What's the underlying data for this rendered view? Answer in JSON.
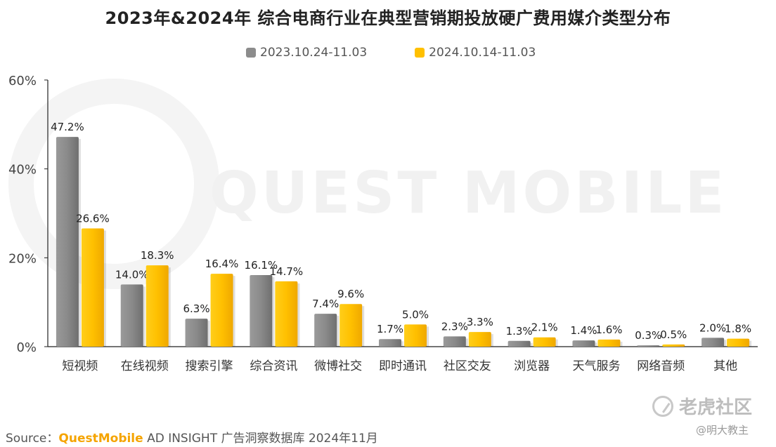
{
  "title": "2023年&2024年 综合电商行业在典型营销期投放硬广费用媒介类型分布",
  "legend": [
    {
      "name": "2023.10.24-11.03",
      "color": "#8c8c8c"
    },
    {
      "name": "2024.10.14-11.03",
      "color": "#ffc000"
    }
  ],
  "watermark": "QUEST MOBILE",
  "source": {
    "prefix": "Source：",
    "brand": "QuestMobile",
    "rest": " AD INSIGHT 广告洞察数据库 2024年11月"
  },
  "badge_text": "老虎社区",
  "author_text": "@明大教主",
  "chart_data": {
    "type": "bar",
    "title": "2023年&2024年 综合电商行业在典型营销期投放硬广费用媒介类型分布",
    "categories": [
      "短视频",
      "在线视频",
      "搜索引擎",
      "综合资讯",
      "微博社交",
      "即时通讯",
      "社区交友",
      "浏览器",
      "天气服务",
      "网络音频",
      "其他"
    ],
    "series": [
      {
        "name": "2023.10.24-11.03",
        "values": [
          47.2,
          14.0,
          6.3,
          16.1,
          7.4,
          1.7,
          2.3,
          1.3,
          1.4,
          0.3,
          2.0
        ],
        "labels": [
          "47.2%",
          "14.0%",
          "6.3%",
          "16.1%",
          "7.4%",
          "1.7%",
          "2.3%",
          "1.3%",
          "1.4%",
          "0.3%",
          "2.0%"
        ],
        "color": "#8c8c8c"
      },
      {
        "name": "2024.10.14-11.03",
        "values": [
          26.6,
          18.3,
          16.4,
          14.7,
          9.6,
          5.0,
          3.3,
          2.1,
          1.6,
          0.5,
          1.8
        ],
        "labels": [
          "26.6%",
          "18.3%",
          "16.4%",
          "14.7%",
          "9.6%",
          "5.0%",
          "3.3%",
          "2.1%",
          "1.6%",
          "0.5%",
          "1.8%"
        ],
        "color": "#ffc000"
      }
    ],
    "ylim": [
      0,
      60
    ],
    "yticks": [
      "0%",
      "20%",
      "40%",
      "60%"
    ],
    "ytick_values": [
      0,
      20,
      40,
      60
    ],
    "grid": false
  }
}
